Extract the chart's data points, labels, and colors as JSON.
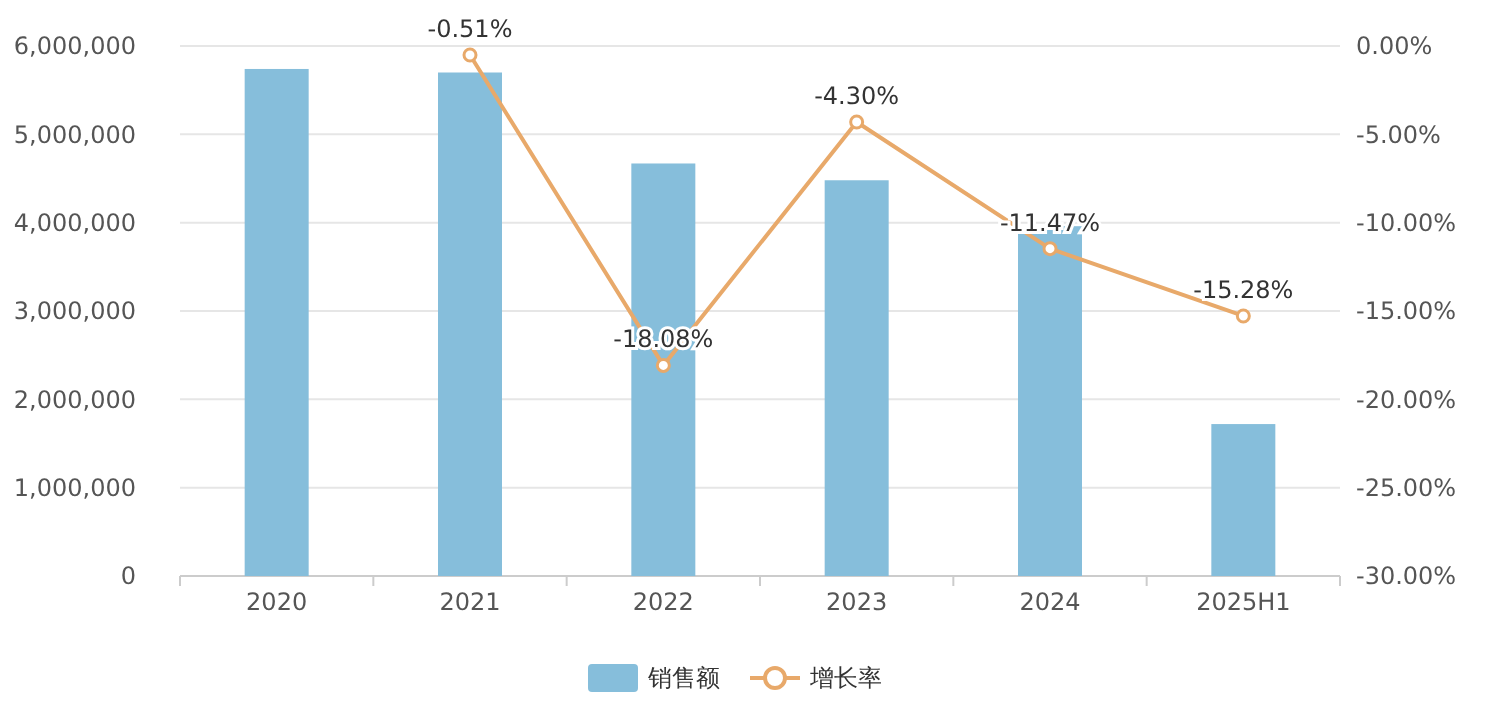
{
  "chart_data": {
    "type": "bar",
    "categories": [
      "2020",
      "2021",
      "2022",
      "2023",
      "2024",
      "2025H1"
    ],
    "series": [
      {
        "name": "销售额",
        "color": "#86bedb",
        "values": [
          5740000,
          5700000,
          4670000,
          4480000,
          3960000,
          1720000
        ]
      },
      {
        "name": "增长率",
        "type": "line",
        "axis": "y2",
        "color": "#e8a96a",
        "values": [
          null,
          -0.51,
          -18.08,
          -4.3,
          -11.47,
          -15.28
        ],
        "value_labels": [
          null,
          "-0.51%",
          "-18.08%",
          "-4.30%",
          "-11.47%",
          "-15.28%"
        ]
      }
    ],
    "ylim": [
      0,
      6000000
    ],
    "yticks": [
      {
        "value": 0,
        "label": "0"
      },
      {
        "value": 1000000,
        "label": "1,000,000"
      },
      {
        "value": 2000000,
        "label": "2,000,000"
      },
      {
        "value": 3000000,
        "label": "3,000,000"
      },
      {
        "value": 4000000,
        "label": "4,000,000"
      },
      {
        "value": 5000000,
        "label": "5,000,000"
      },
      {
        "value": 6000000,
        "label": "6,000,000"
      }
    ],
    "y2lim": [
      -30,
      0
    ],
    "y2ticks": [
      {
        "value": 0,
        "label": "0.00%"
      },
      {
        "value": -5,
        "label": "-5.00%"
      },
      {
        "value": -10,
        "label": "-10.00%"
      },
      {
        "value": -15,
        "label": "-15.00%"
      },
      {
        "value": -20,
        "label": "-20.00%"
      },
      {
        "value": -25,
        "label": "-25.00%"
      },
      {
        "value": -30,
        "label": "-30.00%"
      }
    ],
    "grid": "y",
    "legend": "bottom",
    "marker": "circle"
  }
}
